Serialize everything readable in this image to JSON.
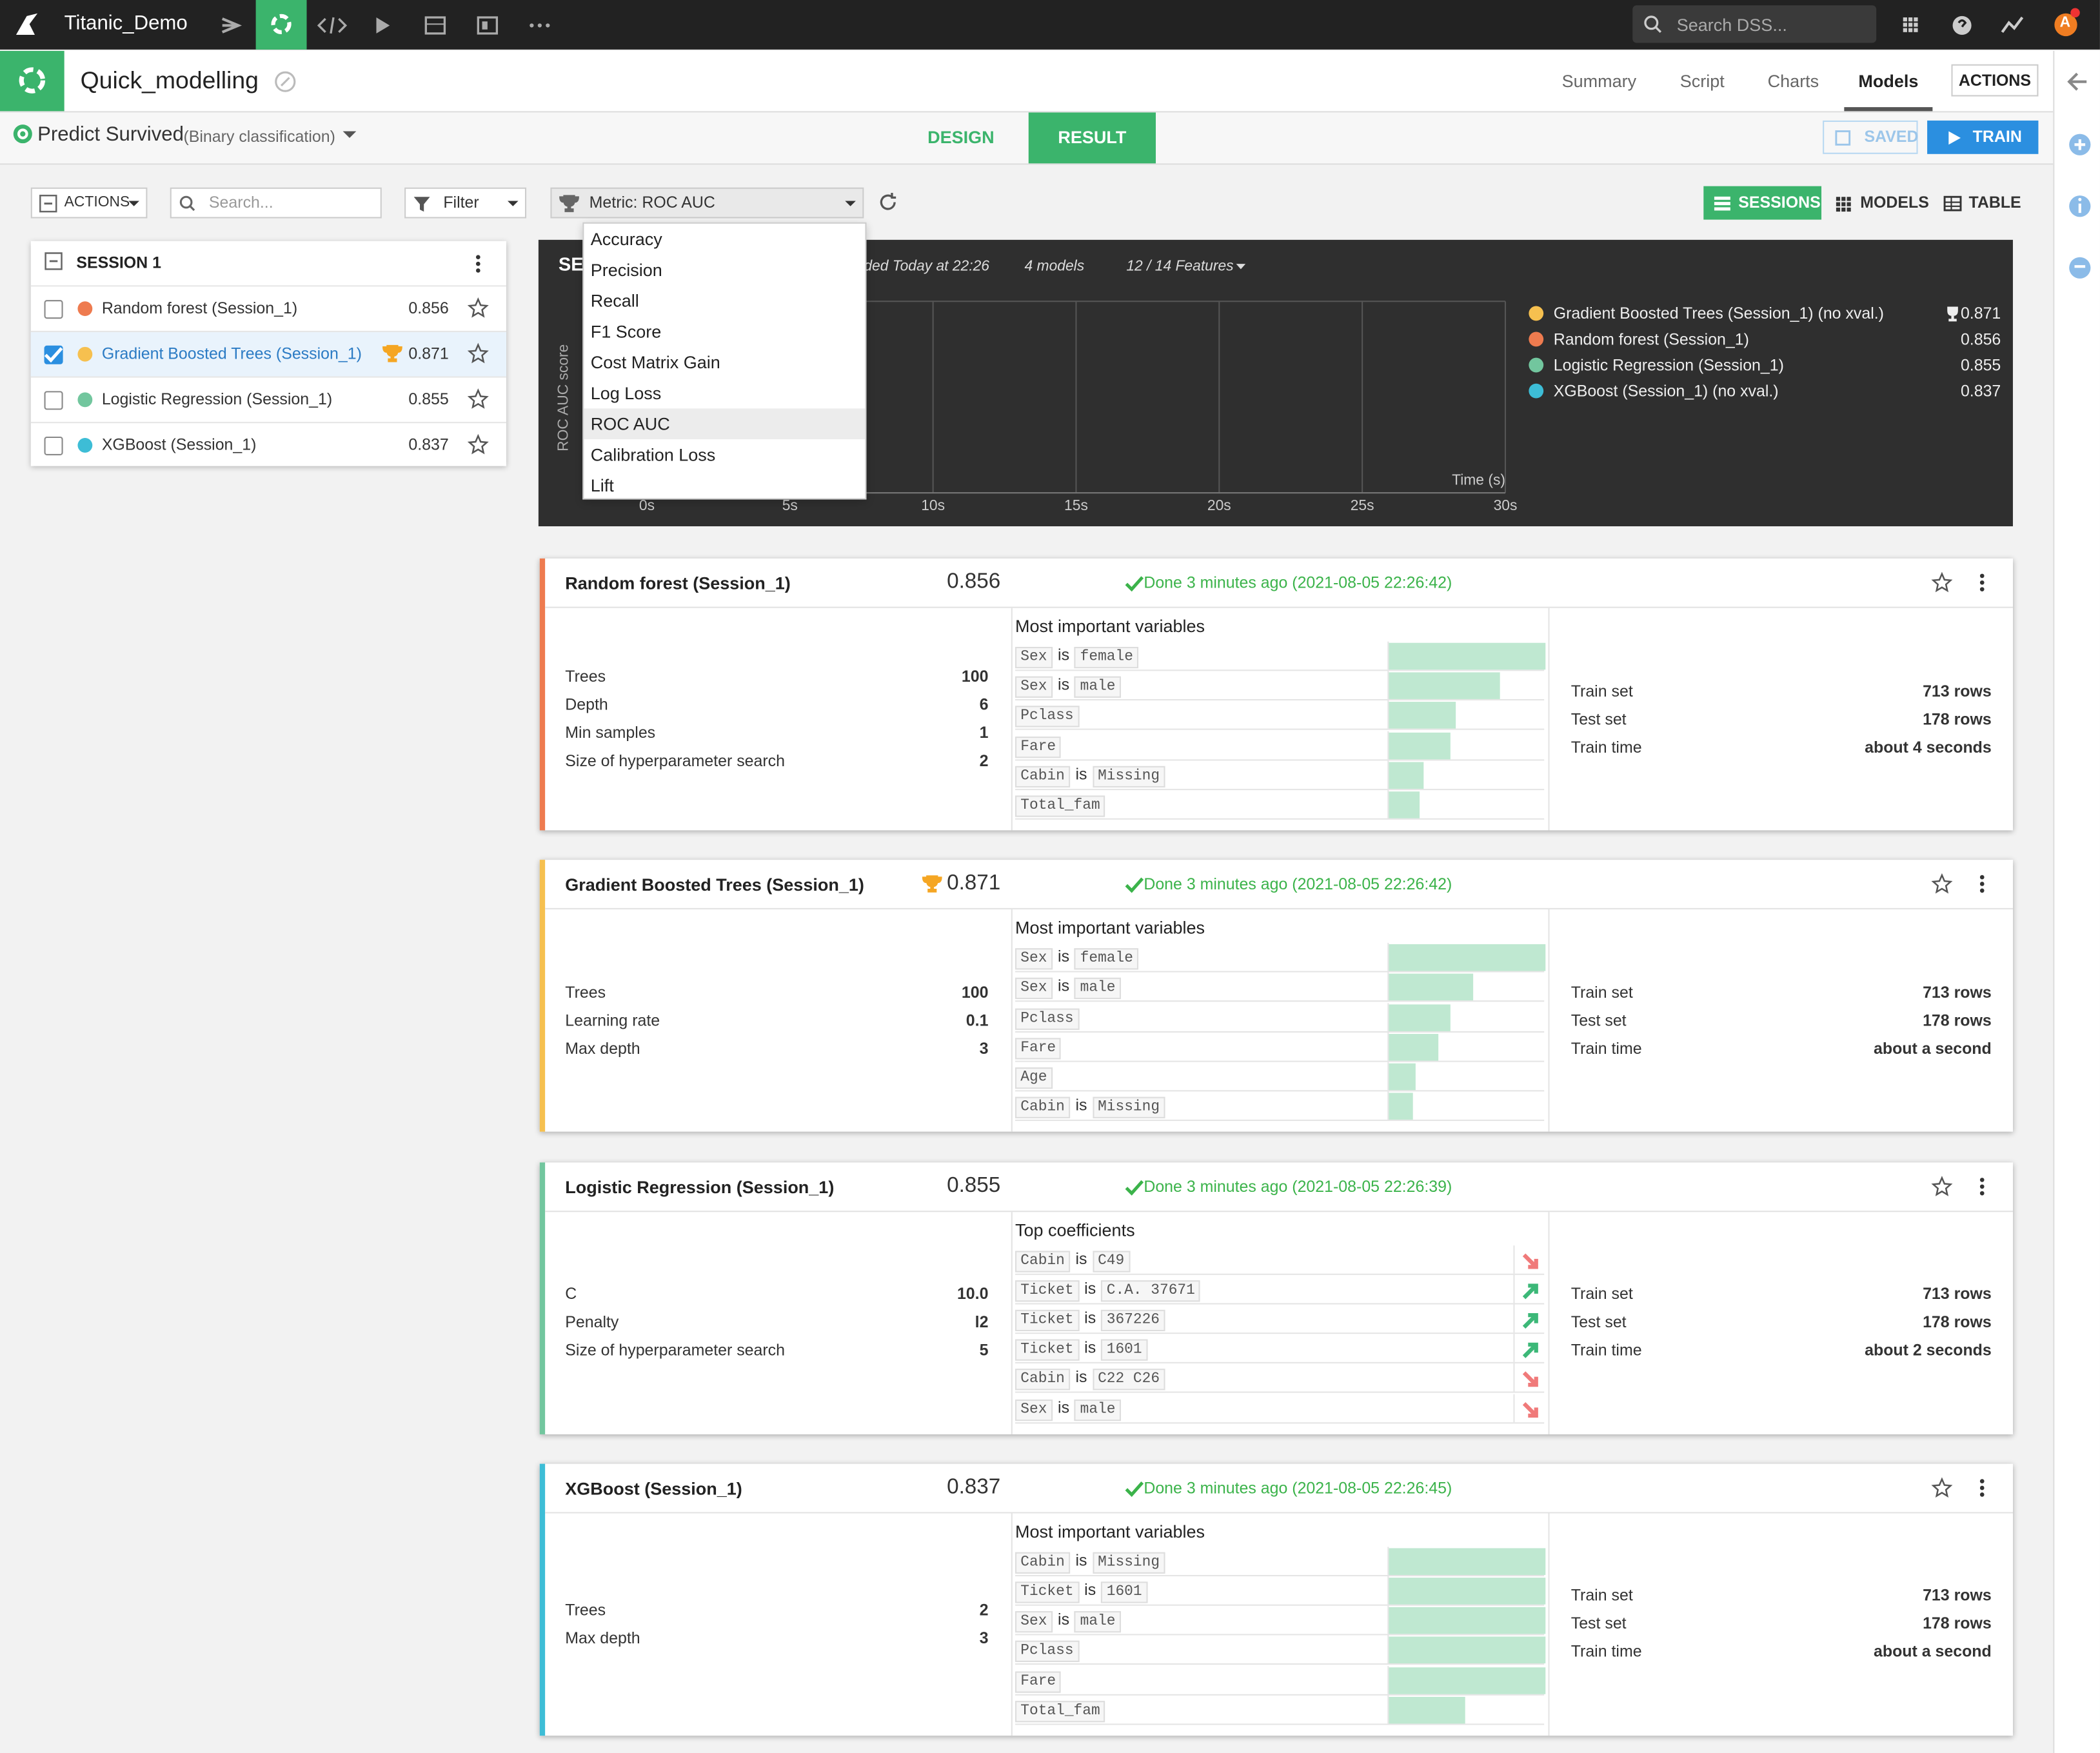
{
  "topbar": {
    "project": "Titanic_Demo",
    "search_placeholder": "Search DSS...",
    "avatar": "A"
  },
  "header": {
    "title": "Quick_modelling",
    "tabs": [
      "Summary",
      "Script",
      "Charts",
      "Models"
    ],
    "active_tab": 3,
    "actions": "ACTIONS"
  },
  "subheader": {
    "task": "Predict Survived",
    "task_type": "(Binary classification)",
    "tabs": [
      "DESIGN",
      "RESULT"
    ],
    "active_tab": 1,
    "saved": "SAVED",
    "train": "TRAIN"
  },
  "toolbar": {
    "actions": "ACTIONS",
    "search_placeholder": "Search...",
    "filter": "Filter",
    "metric": "Metric: ROC AUC",
    "views": [
      "SESSIONS",
      "MODELS",
      "TABLE"
    ],
    "active_view": 0
  },
  "metric_dropdown": {
    "options": [
      "Accuracy",
      "Precision",
      "Recall",
      "F1 Score",
      "Cost Matrix Gain",
      "Log Loss",
      "ROC AUC",
      "Calibration Loss",
      "Lift"
    ],
    "selected": 6
  },
  "session_list": {
    "title": "SESSION 1",
    "models": [
      {
        "name": "Random forest (Session_1)",
        "score": "0.856",
        "color": "#ee7b4f",
        "checked": false,
        "best": false
      },
      {
        "name": "Gradient Boosted Trees (Session_1)",
        "score": "0.871",
        "color": "#f6c04f",
        "checked": true,
        "best": true
      },
      {
        "name": "Logistic Regression (Session_1)",
        "score": "0.855",
        "color": "#72c69e",
        "checked": false,
        "best": false
      },
      {
        "name": "XGBoost (Session_1)",
        "score": "0.837",
        "color": "#3dbdd6",
        "checked": false,
        "best": false
      }
    ]
  },
  "session_chart": {
    "title": "SE",
    "started": "ded Today at 22:26",
    "models_count": "4 models",
    "features": "12 / 14 Features",
    "x_label": "Time (s)",
    "y_label": "ROC AUC score",
    "xlim": [
      0,
      30
    ],
    "xticks": [
      {
        "value": 0,
        "label": "0s"
      },
      {
        "value": 5,
        "label": "5s"
      },
      {
        "value": 10,
        "label": "10s"
      },
      {
        "value": 15,
        "label": "15s"
      },
      {
        "value": 20,
        "label": "20s"
      },
      {
        "value": 25,
        "label": "25s"
      },
      {
        "value": 30,
        "label": "30s"
      }
    ],
    "grid": true,
    "legend": [
      {
        "name": "Gradient Boosted Trees (Session_1) (no xval.)",
        "score": "0.871",
        "color": "#f6c04f",
        "best": true
      },
      {
        "name": "Random forest (Session_1)",
        "score": "0.856",
        "color": "#ee7b4f",
        "best": false
      },
      {
        "name": "Logistic Regression (Session_1)",
        "score": "0.855",
        "color": "#72c69e",
        "best": false
      },
      {
        "name": "XGBoost (Session_1) (no xval.)",
        "score": "0.837",
        "color": "#3dbdd6",
        "best": false
      }
    ]
  },
  "model_cards": [
    {
      "name": "Random forest (Session_1)",
      "score": "0.856",
      "color": "#ee7b4f",
      "best": false,
      "status": "Done 3 minutes ago (2021-08-05 22:26:42)",
      "params": [
        [
          "Trees",
          "100"
        ],
        [
          "Depth",
          "6"
        ],
        [
          "Min samples",
          "1"
        ],
        [
          "Size of hyperparameter search",
          "2"
        ]
      ],
      "variables_title": "Most important variables",
      "variables": [
        {
          "parts": [
            "Sex",
            "is",
            "female"
          ],
          "importance": 1.0
        },
        {
          "parts": [
            "Sex",
            "is",
            "male"
          ],
          "importance": 0.71
        },
        {
          "parts": [
            "Pclass"
          ],
          "importance": 0.43
        },
        {
          "parts": [
            "Fare"
          ],
          "importance": 0.39
        },
        {
          "parts": [
            "Cabin",
            "is",
            "Missing"
          ],
          "importance": 0.22
        },
        {
          "parts": [
            "Total_fam"
          ],
          "importance": 0.2
        }
      ],
      "stats": [
        [
          "Train set",
          "713 rows"
        ],
        [
          "Test set",
          "178 rows"
        ],
        [
          "Train time",
          "about 4 seconds"
        ]
      ]
    },
    {
      "name": "Gradient Boosted Trees (Session_1)",
      "score": "0.871",
      "color": "#f6c04f",
      "best": true,
      "status": "Done 3 minutes ago (2021-08-05 22:26:42)",
      "params": [
        [
          "Trees",
          "100"
        ],
        [
          "Learning rate",
          "0.1"
        ],
        [
          "Max depth",
          "3"
        ]
      ],
      "variables_title": "Most important variables",
      "variables": [
        {
          "parts": [
            "Sex",
            "is",
            "female"
          ],
          "importance": 1.0
        },
        {
          "parts": [
            "Sex",
            "is",
            "male"
          ],
          "importance": 0.54
        },
        {
          "parts": [
            "Pclass"
          ],
          "importance": 0.39
        },
        {
          "parts": [
            "Fare"
          ],
          "importance": 0.32
        },
        {
          "parts": [
            "Age"
          ],
          "importance": 0.17
        },
        {
          "parts": [
            "Cabin",
            "is",
            "Missing"
          ],
          "importance": 0.15
        }
      ],
      "stats": [
        [
          "Train set",
          "713 rows"
        ],
        [
          "Test set",
          "178 rows"
        ],
        [
          "Train time",
          "about a second"
        ]
      ]
    },
    {
      "name": "Logistic Regression (Session_1)",
      "score": "0.855",
      "color": "#72c69e",
      "best": false,
      "status": "Done 3 minutes ago (2021-08-05 22:26:39)",
      "params": [
        [
          "C",
          "10.0"
        ],
        [
          "Penalty",
          "l2"
        ],
        [
          "Size of hyperparameter search",
          "5"
        ]
      ],
      "variables_title": "Top coefficients",
      "variables": [
        {
          "parts": [
            "Cabin",
            "is",
            "C49"
          ],
          "sign": "negative"
        },
        {
          "parts": [
            "Ticket",
            "is",
            "C.A. 37671"
          ],
          "sign": "positive"
        },
        {
          "parts": [
            "Ticket",
            "is",
            "367226"
          ],
          "sign": "positive"
        },
        {
          "parts": [
            "Ticket",
            "is",
            "1601"
          ],
          "sign": "positive"
        },
        {
          "parts": [
            "Cabin",
            "is",
            "C22 C26"
          ],
          "sign": "negative"
        },
        {
          "parts": [
            "Sex",
            "is",
            "male"
          ],
          "sign": "negative"
        }
      ],
      "stats": [
        [
          "Train set",
          "713 rows"
        ],
        [
          "Test set",
          "178 rows"
        ],
        [
          "Train time",
          "about 2 seconds"
        ]
      ]
    },
    {
      "name": "XGBoost (Session_1)",
      "score": "0.837",
      "color": "#3dbdd6",
      "best": false,
      "status": "Done 3 minutes ago (2021-08-05 22:26:45)",
      "params": [
        [
          "Trees",
          "2"
        ],
        [
          "Max depth",
          "3"
        ]
      ],
      "variables_title": "Most important variables",
      "variables": [
        {
          "parts": [
            "Cabin",
            "is",
            "Missing"
          ],
          "importance": 1.0
        },
        {
          "parts": [
            "Ticket",
            "is",
            "1601"
          ],
          "importance": 1.0
        },
        {
          "parts": [
            "Sex",
            "is",
            "male"
          ],
          "importance": 1.0
        },
        {
          "parts": [
            "Pclass"
          ],
          "importance": 1.0
        },
        {
          "parts": [
            "Fare"
          ],
          "importance": 1.0
        },
        {
          "parts": [
            "Total_fam"
          ],
          "importance": 0.49
        }
      ],
      "stats": [
        [
          "Train set",
          "713 rows"
        ],
        [
          "Test set",
          "178 rows"
        ],
        [
          "Train time",
          "about a second"
        ]
      ]
    }
  ]
}
